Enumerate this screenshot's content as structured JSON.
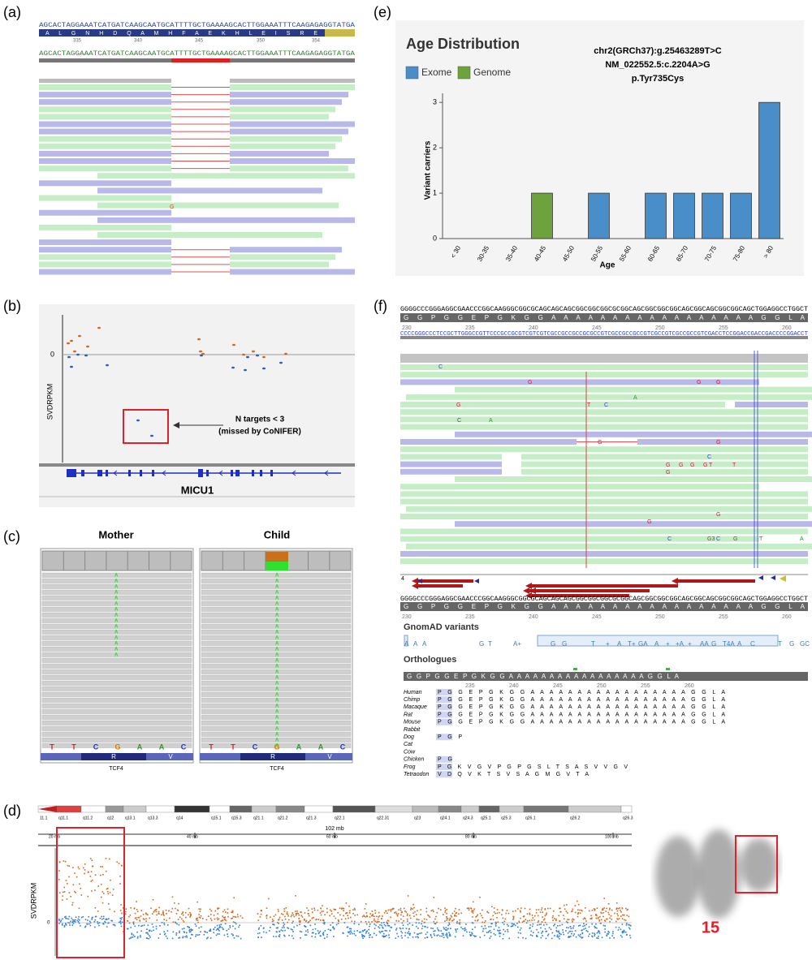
{
  "panels": {
    "a": {
      "label": "(a)",
      "sequence_top": "AGCACTAGGAAATCATGATCAAGCAATGCATTTTGCTGAAAAGCACTTGGAAATTTCAAGAGAGGTATGA",
      "amino_acids": "A L G N H D Q A M H F A E K H L E I S R E",
      "positions": [
        "335",
        "340",
        "345",
        "350",
        "354"
      ],
      "sequence_ref": "AGCACTAGGAAATCATGATCAAGCAATGCATTTTGCTGAAAAGCACTTGGAAATTTCAAGAGAGGTATGA",
      "mismatch": "G"
    },
    "b": {
      "label": "(b)",
      "y_axis": "SVDRPKM",
      "zero": "0",
      "annotation": [
        "N targets < 3",
        "(missed by CoNIFER)"
      ],
      "gene": "MICU1"
    },
    "c": {
      "label": "(c)",
      "samples": [
        "Mother",
        "Child"
      ],
      "alt_base": "A",
      "bases": [
        "T",
        "T",
        "C",
        "G",
        "A",
        "A",
        "C"
      ],
      "amino_acids": [
        "R",
        "V"
      ],
      "gene": "TCF4"
    },
    "d": {
      "label": "(d)",
      "cytobands": [
        "11.1",
        "q11.1",
        "q11.2",
        "q12",
        "q13.1",
        "q13.3",
        "q14",
        "q15.1",
        "q15.3",
        "q21.1",
        "q21.2",
        "q21.3",
        "q22.1",
        "q22.31",
        "q23",
        "q24.1",
        "q24.3",
        "q25.1",
        "q25.3",
        "q26.1",
        "q26.2",
        "q26.3"
      ],
      "scale": "102 mb",
      "ticks": [
        "20 mb",
        "40 mb",
        "60 mb",
        "80 mb",
        "100 mb"
      ],
      "y_axis": "SVDRPKM",
      "zero": "0",
      "chromosome": "15"
    },
    "e": {
      "label": "(e)"
    },
    "f": {
      "label": "(f)",
      "sequence_top": "GGGGCCCGGGAGGCGAACCCGGCAAGGGCGGCGCAGCAGCAGCGGCGGCGGCGCGGCAGCGGCGGCGGCAGCGGCAGCGGCGGCAGCTGGAGGCCTGGCT",
      "amino_acids": "G G P G G E P G K G G A A A A A A A A A A A A A A A A A G G L A",
      "positions": [
        "230",
        "235",
        "240",
        "245",
        "250",
        "255",
        "260"
      ],
      "sequence_complement": "CCCCGGGCCCTCCGCTTGGGCCGTTCCCGCCGCGTCGTCGTCGCCGCCGCCGCGCCGTCGCCGCCGCCGTCGCCGTCGCCGCCGTCGACCTCCGGACCGACCGACCCCGGACCT",
      "mismatches": [
        "C",
        "G",
        "G",
        "G",
        "A",
        "G",
        "T",
        "C",
        "C",
        "A",
        "G",
        "G",
        "C",
        "G",
        "G",
        "G",
        "G",
        "T",
        "T",
        "G",
        "G",
        "G",
        "C",
        "G3",
        "C",
        "G",
        "T",
        "A"
      ],
      "track_number": "4",
      "gnomad_title": "GnomAD variants",
      "gnomad": [
        "A",
        "A",
        "A",
        "G",
        "T",
        "A+",
        "G",
        "G",
        "T",
        "+",
        "A",
        "T+",
        "GA",
        "A",
        "+",
        "+A",
        "+",
        "AA",
        "G",
        "T4A",
        "A",
        "C",
        "T",
        "G",
        "GC"
      ],
      "orthologues_title": "Orthologues",
      "orthologue_bar": "G G P G G E P G K G G A A A A A A A A A A A A A A A A A G G L A",
      "orthologue_positions": [
        "235",
        "240",
        "245",
        "250",
        "255",
        "260"
      ],
      "orthologues": [
        {
          "species": "Human",
          "sequence": "P G G E P G K G G A A A A A A A A A A A A A A A A A G G L A"
        },
        {
          "species": "Chimp",
          "sequence": "P G G E P G K G G A A A A A A A A A A A A A A A A A G G L A"
        },
        {
          "species": "Macaque",
          "sequence": "P G G E P G K G G A A A A A A A A A A A A A A A A A G G L A"
        },
        {
          "species": "Rat",
          "sequence": "P G G E P G K G G A A A A A A A A A A A A A A A A A G G L A"
        },
        {
          "species": "Mouse",
          "sequence": "P G G E P G K G G A A A A A A A A A A A A A A A A A G G L A"
        },
        {
          "species": "Rabbit"
        },
        {
          "species": "Dog",
          "sequence": "P G P"
        },
        {
          "species": "Cat"
        },
        {
          "species": "Cow"
        },
        {
          "species": "Chicken",
          "sequence": "P G"
        },
        {
          "species": "Frog",
          "sequence": "P G K V G V P G P G S L T S A S V V G V"
        },
        {
          "species": "Tetraodon",
          "sequence": "V D Q V K T S V S A G M G V T A"
        }
      ]
    }
  },
  "chart_data": {
    "type": "bar",
    "title": "Age Distribution",
    "annotation": [
      "chr2(GRCh37):g.25463289T>C",
      "NM_022552.5:c.2204A>G",
      "p.Tyr735Cys"
    ],
    "x_label": "Age",
    "y_label": "Variant carriers",
    "categories": [
      "< 30",
      "30-35",
      "35-40",
      "40-45",
      "45-50",
      "50-55",
      "55-60",
      "60-65",
      "65-70",
      "70-75",
      "75-80",
      "> 80"
    ],
    "series": [
      {
        "name": "Exome",
        "color": "#4a8ec9",
        "values": [
          0,
          0,
          0,
          0,
          0,
          1,
          0,
          1,
          1,
          1,
          1,
          3
        ]
      },
      {
        "name": "Genome",
        "color": "#6ea23c",
        "values": [
          0,
          0,
          0,
          1,
          0,
          0,
          0,
          0,
          0,
          0,
          0,
          0
        ]
      }
    ],
    "stacked": true,
    "ylim": [
      0,
      3.2
    ],
    "yticks": [
      0,
      1,
      2,
      3
    ]
  }
}
